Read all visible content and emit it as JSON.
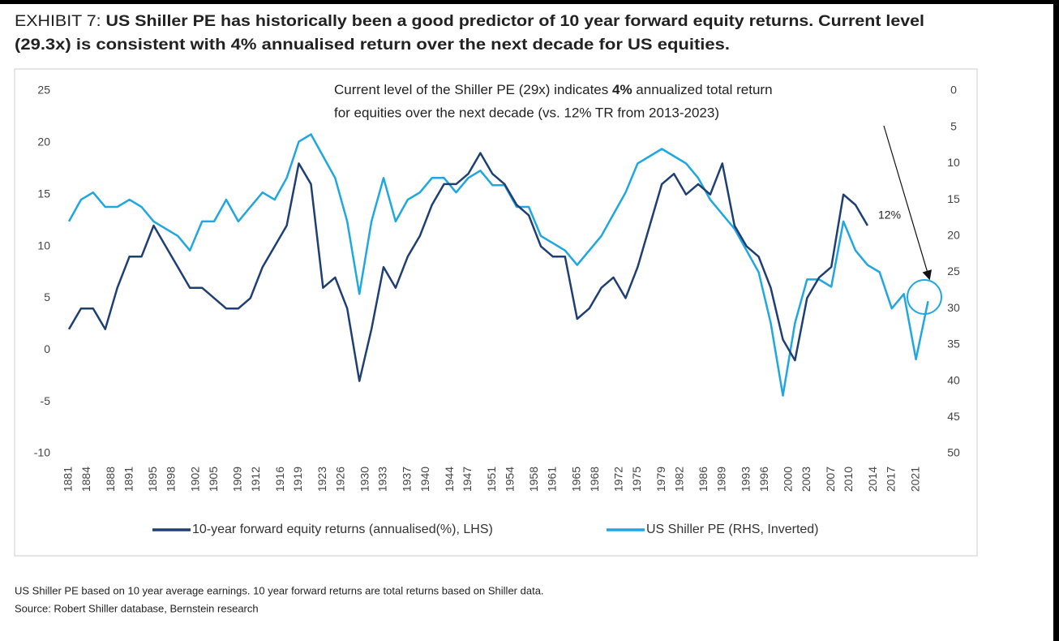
{
  "chart_data": {
    "type": "line",
    "title_prefix": "EXHIBIT 7:",
    "title_line1": "US Shiller PE has historically been a good predictor of 10 year forward equity returns. Current level",
    "title_line2": "(29.3x) is consistent with 4% annualised return over the next decade for US equities.",
    "annotation": {
      "line1_start": "Current level of the Shiller PE (29x) indicates ",
      "line1_bold": "4%",
      "line1_end": " annualized total return",
      "line2": "for equities over the next decade (vs. 12% TR from 2013-2023)"
    },
    "annotation_end_label": "12%",
    "x": [
      1881,
      1883,
      1885,
      1887,
      1889,
      1891,
      1893,
      1895,
      1897,
      1899,
      1901,
      1903,
      1905,
      1907,
      1909,
      1911,
      1913,
      1915,
      1917,
      1919,
      1921,
      1923,
      1925,
      1927,
      1929,
      1931,
      1933,
      1935,
      1937,
      1939,
      1941,
      1943,
      1945,
      1947,
      1949,
      1951,
      1953,
      1955,
      1957,
      1959,
      1961,
      1963,
      1965,
      1967,
      1969,
      1971,
      1973,
      1975,
      1977,
      1979,
      1981,
      1983,
      1985,
      1987,
      1989,
      1991,
      1993,
      1995,
      1997,
      1999,
      2001,
      2003,
      2005,
      2007,
      2009,
      2011,
      2013,
      2015,
      2017,
      2019,
      2021,
      2023
    ],
    "xlim": [
      1881,
      2024
    ],
    "xticks": [
      1881,
      1884,
      1888,
      1891,
      1895,
      1898,
      1902,
      1905,
      1909,
      1912,
      1916,
      1919,
      1923,
      1926,
      1930,
      1933,
      1937,
      1940,
      1944,
      1947,
      1951,
      1954,
      1958,
      1961,
      1965,
      1968,
      1972,
      1975,
      1979,
      1982,
      1986,
      1989,
      1993,
      1996,
      2000,
      2003,
      2007,
      2010,
      2014,
      2017,
      2021
    ],
    "ylim": [
      -10,
      25
    ],
    "yticks": [
      -10,
      -5,
      0,
      5,
      10,
      15,
      20,
      25
    ],
    "y2lim": [
      0,
      50
    ],
    "y2ticks": [
      0,
      5,
      10,
      15,
      20,
      25,
      30,
      35,
      40,
      45,
      50
    ],
    "y2_inverted": true,
    "series": [
      {
        "name": "10-year forward equity returns (annualised(%), LHS)",
        "color": "#1f3f73",
        "values": [
          2,
          4,
          4,
          2,
          6,
          9,
          9,
          12,
          10,
          8,
          6,
          6,
          5,
          4,
          4,
          5,
          8,
          10,
          12,
          18,
          16,
          6,
          7,
          4,
          -3,
          2,
          8,
          6,
          9,
          11,
          14,
          16,
          16,
          17,
          19,
          17,
          16,
          14,
          13,
          10,
          9,
          9,
          3,
          4,
          6,
          7,
          5,
          8,
          12,
          16,
          17,
          15,
          16,
          15,
          18,
          12,
          10,
          9,
          6,
          1,
          -1,
          5,
          7,
          8,
          15,
          14,
          12,
          null,
          null,
          null,
          null,
          null
        ]
      },
      {
        "name": "US Shiller PE (RHS, Inverted)",
        "color": "#1ea7e0",
        "axis": "y2",
        "values": [
          18,
          15,
          14,
          16,
          16,
          15,
          16,
          18,
          19,
          20,
          22,
          18,
          18,
          15,
          18,
          16,
          14,
          15,
          12,
          7,
          6,
          9,
          12,
          18,
          28,
          18,
          12,
          18,
          15,
          14,
          12,
          12,
          14,
          12,
          11,
          13,
          13,
          16,
          16,
          20,
          21,
          22,
          24,
          22,
          20,
          17,
          14,
          10,
          9,
          8,
          9,
          10,
          12,
          15,
          17,
          19,
          22,
          25,
          32,
          42,
          32,
          26,
          26,
          27,
          18,
          22,
          24,
          25,
          30,
          28,
          37,
          29
        ]
      }
    ],
    "footnotes": [
      "US Shiller PE based on 10 year average earnings. 10 year forward returns are total returns based on Shiller data.",
      "Source: Robert Shiller database, Bernstein research"
    ]
  }
}
